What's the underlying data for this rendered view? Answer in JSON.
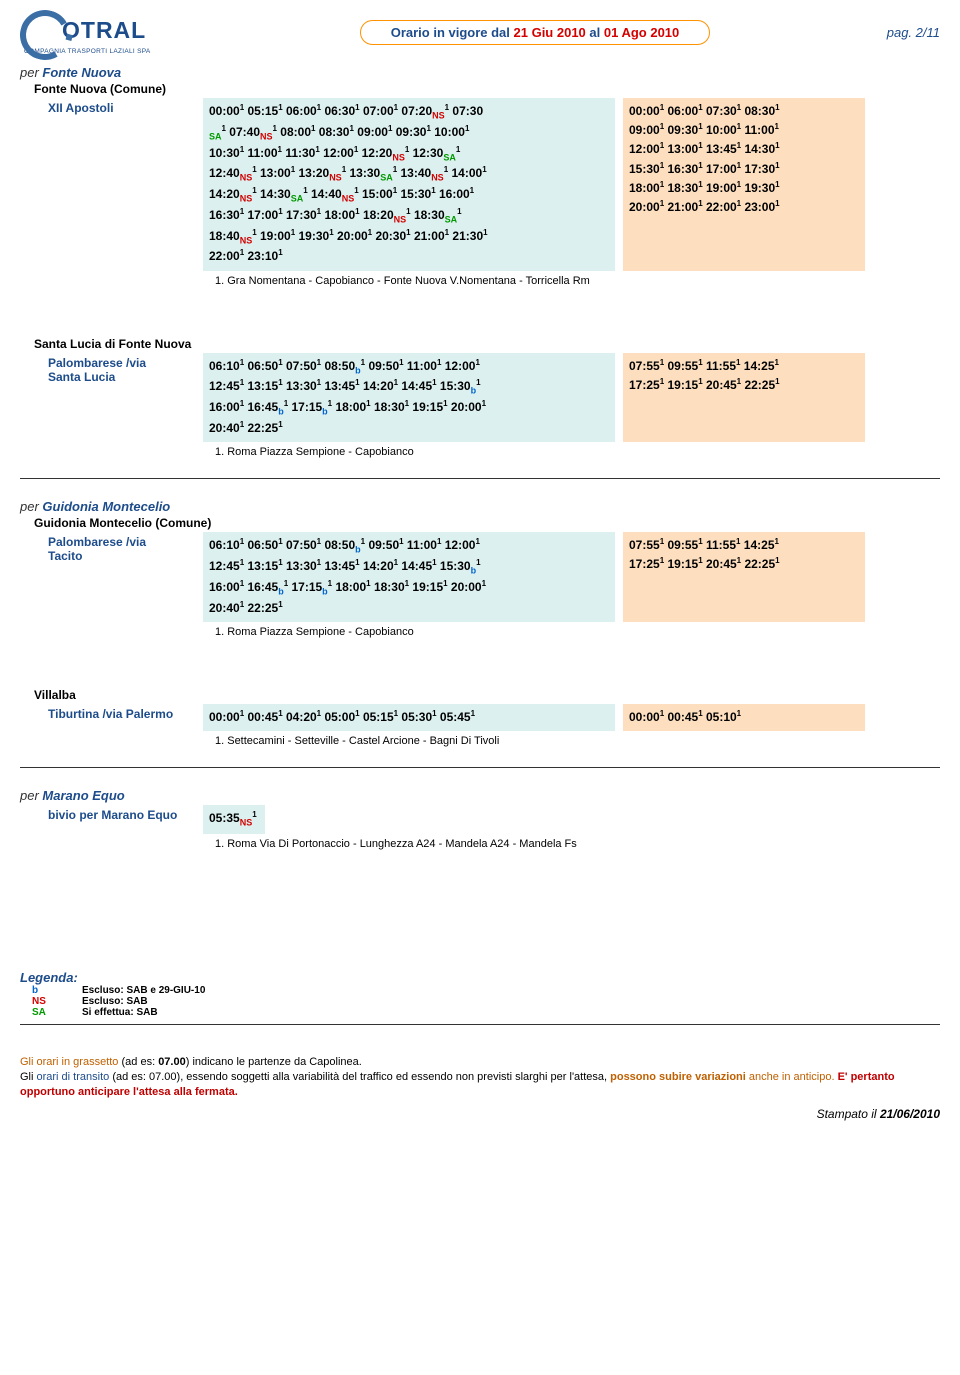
{
  "header": {
    "logo_text": "OTRAL",
    "logo_sub": "COMPAGNIA TRASPORTI LAZIALI SPA",
    "title_pre": "Orario in vigore dal ",
    "date1": "21 Giu 2010",
    "title_mid": " al ",
    "date2": "01 Ago 2010",
    "pagenum": "pag. 2/11"
  },
  "blocks": [
    {
      "per": "per ",
      "dest": "Fonte Nuova",
      "sub": "Fonte Nuova (Comune)",
      "rows": [
        {
          "stop": "XII Apostoli",
          "col1_html": "00:00<sup class='sup'>1</sup> 05:15<sup class='sup'>1</sup> 06:00<sup class='sup'>1</sup> 06:30<sup class='sup'>1</sup> 07:00<sup class='sup'>1</sup> 07:20<span class='ns'>NS</span><sup class='sup'>1</sup> 07:30<br><span class='sa'>SA</span><sup class='sup'>1</sup> 07:40<span class='ns'>NS</span><sup class='sup'>1</sup> 08:00<sup class='sup'>1</sup> 08:30<sup class='sup'>1</sup> 09:00<sup class='sup'>1</sup> 09:30<sup class='sup'>1</sup> 10:00<sup class='sup'>1</sup><br>10:30<sup class='sup'>1</sup> 11:00<sup class='sup'>1</sup> 11:30<sup class='sup'>1</sup> 12:00<sup class='sup'>1</sup> 12:20<span class='ns'>NS</span><sup class='sup'>1</sup> 12:30<span class='sa'>SA</span><sup class='sup'>1</sup><br>12:40<span class='ns'>NS</span><sup class='sup'>1</sup> 13:00<sup class='sup'>1</sup> 13:20<span class='ns'>NS</span><sup class='sup'>1</sup> 13:30<span class='sa'>SA</span><sup class='sup'>1</sup> 13:40<span class='ns'>NS</span><sup class='sup'>1</sup> 14:00<sup class='sup'>1</sup><br>14:20<span class='ns'>NS</span><sup class='sup'>1</sup> 14:30<span class='sa'>SA</span><sup class='sup'>1</sup> 14:40<span class='ns'>NS</span><sup class='sup'>1</sup> 15:00<sup class='sup'>1</sup> 15:30<sup class='sup'>1</sup> 16:00<sup class='sup'>1</sup><br>16:30<sup class='sup'>1</sup> 17:00<sup class='sup'>1</sup> 17:30<sup class='sup'>1</sup> 18:00<sup class='sup'>1</sup> 18:20<span class='ns'>NS</span><sup class='sup'>1</sup> 18:30<span class='sa'>SA</span><sup class='sup'>1</sup><br>18:40<span class='ns'>NS</span><sup class='sup'>1</sup> 19:00<sup class='sup'>1</sup> 19:30<sup class='sup'>1</sup> 20:00<sup class='sup'>1</sup> 20:30<sup class='sup'>1</sup> 21:00<sup class='sup'>1</sup> 21:30<sup class='sup'>1</sup><br>22:00<sup class='sup'>1</sup> 23:10<sup class='sup'>1</sup>",
          "col2_html": "00:00<sup class='sup'>1</sup> 06:00<sup class='sup'>1</sup> 07:30<sup class='sup'>1</sup> 08:30<sup class='sup'>1</sup><br>09:00<sup class='sup'>1</sup> 09:30<sup class='sup'>1</sup> 10:00<sup class='sup'>1</sup> 11:00<sup class='sup'>1</sup><br>12:00<sup class='sup'>1</sup> 13:00<sup class='sup'>1</sup> 13:45<sup class='sup'>1</sup> 14:30<sup class='sup'>1</sup><br>15:30<sup class='sup'>1</sup> 16:30<sup class='sup'>1</sup> 17:00<sup class='sup'>1</sup> 17:30<sup class='sup'>1</sup><br>18:00<sup class='sup'>1</sup> 18:30<sup class='sup'>1</sup> 19:00<sup class='sup'>1</sup> 19:30<sup class='sup'>1</sup><br>20:00<sup class='sup'>1</sup> 21:00<sup class='sup'>1</sup> 22:00<sup class='sup'>1</sup> 23:00<sup class='sup'>1</sup>",
          "note": "1. Gra Nomentana - Capobianco - Fonte Nuova V.Nomentana - Torricella Rm"
        }
      ]
    },
    {
      "sub": "Santa Lucia di Fonte Nuova",
      "no_per": true,
      "rows": [
        {
          "stop_html": "Palombarese /via<br>Santa Lucia",
          "col1_html": "06:10<sup class='sup'>1</sup> 06:50<sup class='sup'>1</sup> 07:50<sup class='sup'>1</sup> 08:50<span class='bsub'>b</span><sup class='sup'>1</sup> 09:50<sup class='sup'>1</sup> 11:00<sup class='sup'>1</sup> 12:00<sup class='sup'>1</sup><br>12:45<sup class='sup'>1</sup> 13:15<sup class='sup'>1</sup> 13:30<sup class='sup'>1</sup> 13:45<sup class='sup'>1</sup> 14:20<sup class='sup'>1</sup> 14:45<sup class='sup'>1</sup> 15:30<span class='bsub'>b</span><sup class='sup'>1</sup><br>16:00<sup class='sup'>1</sup> 16:45<span class='bsub'>b</span><sup class='sup'>1</sup> 17:15<span class='bsub'>b</span><sup class='sup'>1</sup> 18:00<sup class='sup'>1</sup> 18:30<sup class='sup'>1</sup> 19:15<sup class='sup'>1</sup> 20:00<sup class='sup'>1</sup><br>20:40<sup class='sup'>1</sup> 22:25<sup class='sup'>1</sup>",
          "col2_html": "07:55<sup class='sup'>1</sup> 09:55<sup class='sup'>1</sup> 11:55<sup class='sup'>1</sup> 14:25<sup class='sup'>1</sup><br>17:25<sup class='sup'>1</sup> 19:15<sup class='sup'>1</sup> 20:45<sup class='sup'>1</sup> 22:25<sup class='sup'>1</sup>",
          "note": "1. Roma Piazza Sempione - Capobianco"
        }
      ]
    },
    {
      "per": "per ",
      "dest": "Guidonia Montecelio",
      "sub": "Guidonia Montecelio (Comune)",
      "rows": [
        {
          "stop_html": "Palombarese /via<br>Tacito",
          "col1_html": "06:10<sup class='sup'>1</sup> 06:50<sup class='sup'>1</sup> 07:50<sup class='sup'>1</sup> 08:50<span class='bsub'>b</span><sup class='sup'>1</sup> 09:50<sup class='sup'>1</sup> 11:00<sup class='sup'>1</sup> 12:00<sup class='sup'>1</sup><br>12:45<sup class='sup'>1</sup> 13:15<sup class='sup'>1</sup> 13:30<sup class='sup'>1</sup> 13:45<sup class='sup'>1</sup> 14:20<sup class='sup'>1</sup> 14:45<sup class='sup'>1</sup> 15:30<span class='bsub'>b</span><sup class='sup'>1</sup><br>16:00<sup class='sup'>1</sup> 16:45<span class='bsub'>b</span><sup class='sup'>1</sup> 17:15<span class='bsub'>b</span><sup class='sup'>1</sup> 18:00<sup class='sup'>1</sup> 18:30<sup class='sup'>1</sup> 19:15<sup class='sup'>1</sup> 20:00<sup class='sup'>1</sup><br>20:40<sup class='sup'>1</sup> 22:25<sup class='sup'>1</sup>",
          "col2_html": "07:55<sup class='sup'>1</sup> 09:55<sup class='sup'>1</sup> 11:55<sup class='sup'>1</sup> 14:25<sup class='sup'>1</sup><br>17:25<sup class='sup'>1</sup> 19:15<sup class='sup'>1</sup> 20:45<sup class='sup'>1</sup> 22:25<sup class='sup'>1</sup>",
          "note": "1. Roma Piazza Sempione - Capobianco"
        }
      ]
    },
    {
      "sub": "Villalba",
      "no_per": true,
      "rows": [
        {
          "stop_html": "Tiburtina /via Palermo",
          "col1_html": "00:00<sup class='sup'>1</sup> 00:45<sup class='sup'>1</sup> 04:20<sup class='sup'>1</sup> 05:00<sup class='sup'>1</sup> 05:15<sup class='sup'>1</sup> 05:30<sup class='sup'>1</sup> 05:45<sup class='sup'>1</sup>",
          "col2_html": "00:00<sup class='sup'>1</sup> 00:45<sup class='sup'>1</sup> 05:10<sup class='sup'>1</sup>",
          "note": "1. Settecamini - Setteville - Castel Arcione - Bagni Di Tivoli"
        }
      ]
    },
    {
      "per": "per ",
      "dest": "Marano Equo",
      "rows": [
        {
          "stop_html": "bivio per Marano Equo",
          "stop_color": "#1d4c8b",
          "small_col1": true,
          "col1_html": "05:35<span class='ns'>NS</span><sup class='sup'>1</sup>",
          "note": "1. Roma Via Di Portonaccio - Lunghezza A24 - Mandela A24 - Mandela Fs"
        }
      ]
    }
  ],
  "legend": {
    "title": "Legenda:",
    "items": [
      {
        "k": "b",
        "v": "Escluso: SAB e 29-GIU-10",
        "cls": "b-c"
      },
      {
        "k": "NS",
        "v": "Escluso: SAB",
        "cls": "ns-c"
      },
      {
        "k": "SA",
        "v": "Si effettua: SAB",
        "cls": "sa-c"
      }
    ]
  },
  "footer": {
    "l1a": "Gli orari in grassetto",
    "l1b": " (ad es: ",
    "l1c": "07.00",
    "l1d": ") indicano le partenze da Capolinea.",
    "l2a": "Gli ",
    "l2b": "orari di transito",
    "l2c": " (ad es: 07.00), essendo soggetti alla variabilità del traffico ed essendo non previsti slarghi per l'attesa, ",
    "l2d": "possono subire variazioni",
    "l2e": " anche in anticipo. ",
    "l2f": "E' pertanto opportuno anticipare l'attesa alla fermata.",
    "stamp_pre": "Stampato il ",
    "stamp_date": "21/06/2010"
  }
}
